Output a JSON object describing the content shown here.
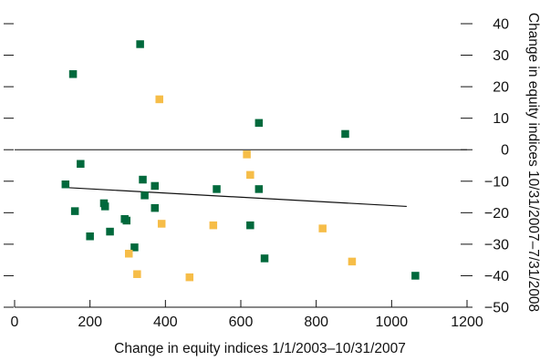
{
  "chart_data": {
    "type": "scatter",
    "xlabel": "Change in equity indices 1/1/2003–10/31/2007",
    "ylabel": "Change in equity indices 10/31/2007–7/31/2008",
    "xlim": [
      0,
      1200
    ],
    "ylim": [
      -50,
      40
    ],
    "x_ticks": [
      0,
      200,
      400,
      600,
      800,
      1000,
      1200
    ],
    "y_ticks": [
      40,
      30,
      20,
      10,
      0,
      -10,
      -20,
      -30,
      -40,
      -50
    ],
    "y_axis_side": "right",
    "grid": false,
    "legend": "none",
    "zero_line": true,
    "trend_line": {
      "x": [
        135,
        1040
      ],
      "y": [
        -12,
        -18
      ]
    },
    "series": [
      {
        "color": "#00693c",
        "points": [
          {
            "x": 333,
            "y": 33.5
          },
          {
            "x": 155,
            "y": 24
          },
          {
            "x": 648,
            "y": 8.5
          },
          {
            "x": 877,
            "y": 5
          },
          {
            "x": 175,
            "y": -4.5
          },
          {
            "x": 135,
            "y": -11
          },
          {
            "x": 340,
            "y": -9.5
          },
          {
            "x": 372,
            "y": -11.5
          },
          {
            "x": 536,
            "y": -12.5
          },
          {
            "x": 648,
            "y": -12.5
          },
          {
            "x": 345,
            "y": -14.5
          },
          {
            "x": 160,
            "y": -19.5
          },
          {
            "x": 237,
            "y": -17
          },
          {
            "x": 240,
            "y": -18
          },
          {
            "x": 372,
            "y": -18.5
          },
          {
            "x": 292,
            "y": -22
          },
          {
            "x": 297,
            "y": -22.5
          },
          {
            "x": 625,
            "y": -24
          },
          {
            "x": 253,
            "y": -26
          },
          {
            "x": 200,
            "y": -27.5
          },
          {
            "x": 318,
            "y": -31
          },
          {
            "x": 663,
            "y": -34.5
          },
          {
            "x": 1063,
            "y": -40
          }
        ]
      },
      {
        "color": "#f6bd48",
        "points": [
          {
            "x": 384,
            "y": 16
          },
          {
            "x": 616,
            "y": -1.5
          },
          {
            "x": 625,
            "y": -8
          },
          {
            "x": 390,
            "y": -23.5
          },
          {
            "x": 527,
            "y": -24
          },
          {
            "x": 817,
            "y": -25
          },
          {
            "x": 303,
            "y": -33
          },
          {
            "x": 895,
            "y": -35.5
          },
          {
            "x": 325,
            "y": -39.5
          },
          {
            "x": 464,
            "y": -40.5
          }
        ]
      }
    ]
  }
}
